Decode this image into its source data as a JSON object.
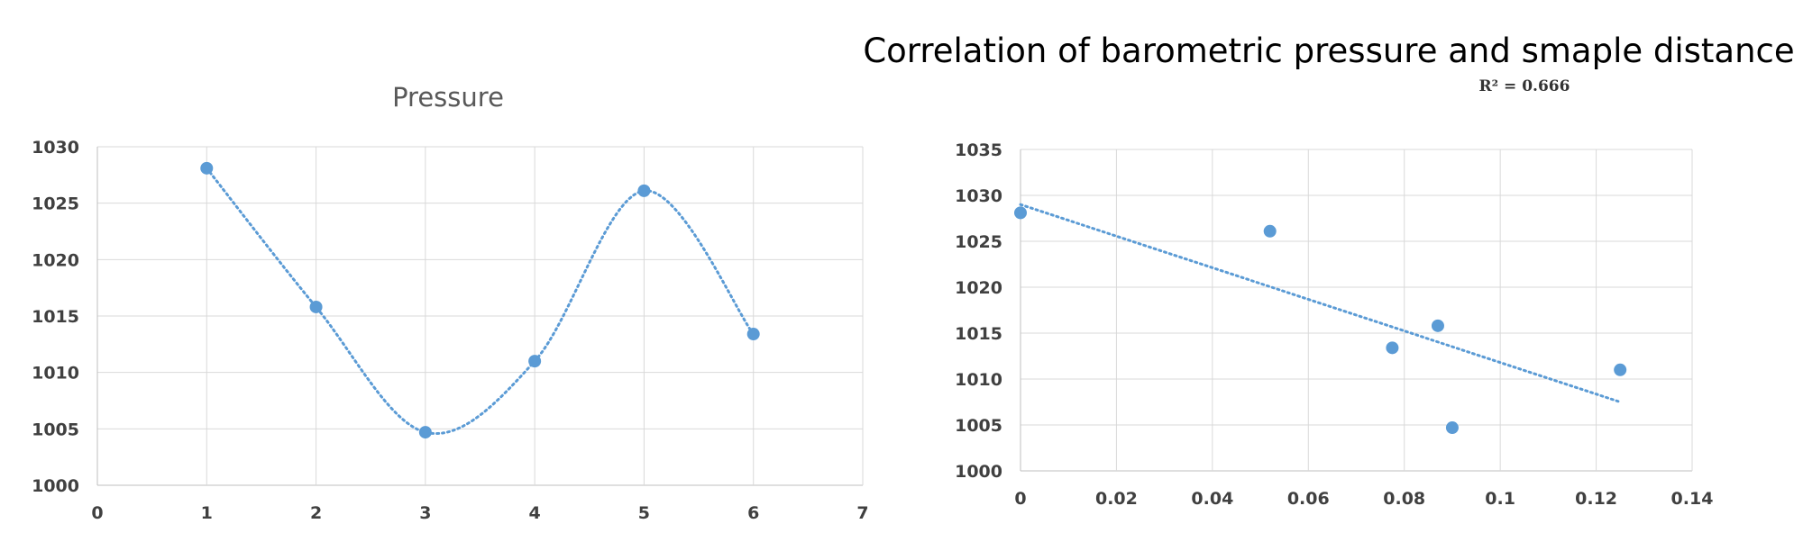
{
  "chart_data": [
    {
      "type": "scatter",
      "title": "Pressure",
      "xlabel": "",
      "ylabel": "",
      "xlim": [
        0,
        7
      ],
      "ylim": [
        1000,
        1030
      ],
      "xticks": [
        "0",
        "1",
        "2",
        "3",
        "4",
        "5",
        "6",
        "7"
      ],
      "yticks": [
        "1000",
        "1005",
        "1010",
        "1015",
        "1020",
        "1025",
        "1030"
      ],
      "grid": true,
      "trendline": "smooth",
      "color": "#5b9bd5",
      "points": [
        {
          "x": 1,
          "y": 1028.1
        },
        {
          "x": 2,
          "y": 1015.8
        },
        {
          "x": 3,
          "y": 1004.7
        },
        {
          "x": 4,
          "y": 1011.0
        },
        {
          "x": 5,
          "y": 1026.1
        },
        {
          "x": 6,
          "y": 1013.4
        }
      ]
    },
    {
      "type": "scatter",
      "title": "Correlation of barometric pressure and smaple distance",
      "annotation": "R² = 0.666",
      "xlabel": "",
      "ylabel": "",
      "xlim": [
        0,
        0.14
      ],
      "ylim": [
        1000,
        1035
      ],
      "xticks": [
        "0",
        "0.02",
        "0.04",
        "0.06",
        "0.08",
        "0.1",
        "0.12",
        "0.14"
      ],
      "yticks": [
        "1000",
        "1005",
        "1010",
        "1015",
        "1020",
        "1025",
        "1030",
        "1035"
      ],
      "grid": true,
      "trendline": "linear",
      "trend_x": [
        0,
        0.125
      ],
      "trend_y": [
        1029.0,
        1007.5
      ],
      "color": "#5b9bd5",
      "points": [
        {
          "x": 0,
          "y": 1028.1
        },
        {
          "x": 0.052,
          "y": 1026.1
        },
        {
          "x": 0.0775,
          "y": 1013.4
        },
        {
          "x": 0.087,
          "y": 1015.8
        },
        {
          "x": 0.09,
          "y": 1004.7
        },
        {
          "x": 0.125,
          "y": 1011.0
        }
      ]
    }
  ]
}
